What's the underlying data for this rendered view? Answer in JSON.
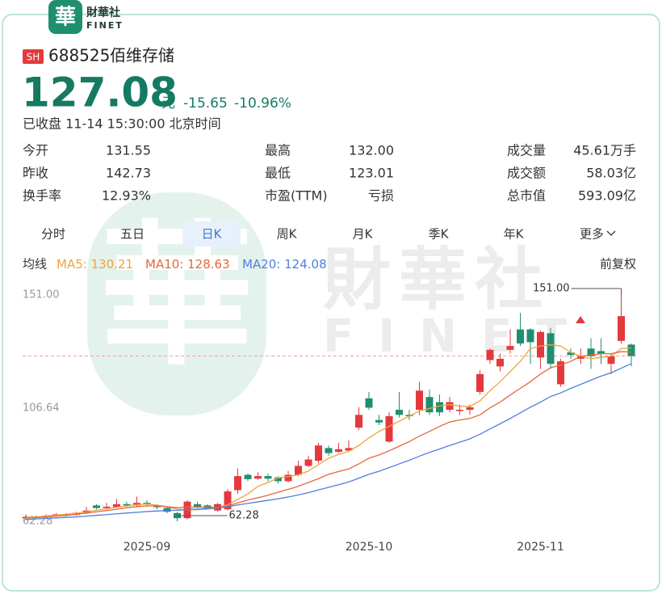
{
  "header": {
    "logo_char": "華",
    "brand_cn": "財華社",
    "brand_en": "FINET"
  },
  "quote": {
    "market": "SH",
    "code": "688525",
    "name": "佰维存储",
    "price": "127.08",
    "unit": "元",
    "change": "-15.65",
    "change_pct": "-10.96%",
    "status": "已收盘 11-14 15:30:00 北京时间"
  },
  "stats": [
    [
      [
        "今开",
        "131.55"
      ],
      [
        "昨收",
        "142.73"
      ],
      [
        "换手率",
        "12.93%"
      ]
    ],
    [
      [
        "最高",
        "132.00"
      ],
      [
        "最低",
        "123.01"
      ],
      [
        "市盈(TTM)",
        "亏损"
      ]
    ],
    [
      [
        "成交量",
        "45.61万手"
      ],
      [
        "成交额",
        "58.03亿"
      ],
      [
        "总市值",
        "593.09亿"
      ]
    ]
  ],
  "tabs": [
    "分时",
    "五日",
    "日K",
    "周K",
    "月K",
    "季K",
    "年K",
    "更多"
  ],
  "watermark": {
    "cn": "財華社",
    "en": "FINET",
    "char": "華"
  },
  "chart_data": {
    "type": "candlestick",
    "categories": [
      null,
      null,
      null,
      null,
      null,
      null,
      null,
      null,
      null,
      null,
      null,
      null,
      "2025-09",
      null,
      null,
      null,
      null,
      null,
      null,
      null,
      null,
      null,
      null,
      null,
      null,
      null,
      null,
      null,
      null,
      null,
      null,
      null,
      null,
      null,
      "2025-10",
      null,
      null,
      null,
      null,
      null,
      null,
      null,
      null,
      null,
      null,
      null,
      null,
      null,
      null,
      null,
      null,
      "2025-11",
      null,
      null,
      null,
      null,
      null,
      null,
      null,
      null,
      null
    ],
    "open": [
      63.5,
      64,
      64,
      64.5,
      65,
      64.8,
      65.6,
      68.5,
      67.5,
      67.8,
      69,
      68.5,
      69.5,
      68.5,
      67.5,
      65.5,
      63.5,
      69,
      68.5,
      66.5,
      67,
      74.5,
      80.5,
      79,
      80,
      79.5,
      78,
      80.5,
      84,
      86,
      91,
      89.5,
      90,
      99,
      110.5,
      102,
      93.5,
      106,
      104,
      106,
      111,
      109,
      106,
      105.5,
      106,
      113,
      125.5,
      123,
      129.5,
      137.5,
      137.5,
      126.5,
      136,
      116,
      128.5,
      126,
      130,
      129,
      124,
      133,
      131.55
    ],
    "high": [
      65,
      64.5,
      65,
      65.5,
      65.5,
      66,
      68,
      69,
      69.5,
      71,
      70,
      72,
      70.5,
      69,
      68,
      66,
      70.5,
      70,
      69,
      69.5,
      75,
      83,
      81,
      81.5,
      81,
      80,
      82,
      86,
      88,
      93,
      92,
      93,
      94,
      107,
      113,
      104,
      105,
      113,
      106,
      117,
      114,
      112,
      111,
      108,
      108,
      121.5,
      130,
      128,
      137.5,
      144,
      138,
      137,
      138,
      126,
      130,
      130,
      134,
      134,
      128,
      151,
      132
    ],
    "low": [
      63,
      63.2,
      63.5,
      64,
      64.2,
      64.5,
      65.2,
      67,
      67,
      67.5,
      68,
      68,
      68,
      67,
      65.5,
      62.28,
      63,
      67.5,
      67,
      66,
      66.5,
      73,
      78,
      78.5,
      78,
      77,
      77.5,
      80,
      83.5,
      85,
      88,
      89,
      89.5,
      98,
      106,
      100,
      93,
      103,
      102,
      104,
      104,
      103.5,
      105,
      104,
      104,
      112,
      124,
      121,
      128,
      131,
      124,
      122,
      122,
      115,
      126,
      124,
      122,
      124,
      120,
      132,
      123.01
    ],
    "close": [
      64,
      63.8,
      64.5,
      65,
      64.8,
      65.6,
      66.5,
      67.5,
      68,
      69,
      68.5,
      69.5,
      68.8,
      67.8,
      66,
      63.5,
      70,
      68,
      67.5,
      69,
      74,
      80,
      78.8,
      80,
      79,
      78,
      80.5,
      84,
      86.5,
      92,
      89,
      90.5,
      91,
      104,
      106.8,
      101,
      103.5,
      104,
      103.5,
      113.5,
      105,
      105,
      109,
      106,
      107,
      120,
      129.5,
      126,
      131,
      132,
      132.5,
      136.5,
      124,
      125,
      127.5,
      127,
      127,
      128,
      127,
      142.73,
      127.08
    ],
    "up_color": "#e4393c",
    "down_color": "#1f8f6f",
    "series": [
      {
        "name": "MA5",
        "color": "#f0a33a",
        "values": [
          63.8,
          64,
          64.3,
          64.7,
          65,
          65.4,
          66,
          66.6,
          67.2,
          67.8,
          68.3,
          68.8,
          69,
          68.6,
          68,
          67,
          66.8,
          66.8,
          67,
          67.5,
          68.8,
          70.8,
          73,
          76,
          77.5,
          79.3,
          79.8,
          80.5,
          82,
          84.5,
          87,
          88.5,
          89.7,
          92,
          95,
          97.5,
          99.5,
          101.5,
          103.5,
          105.5,
          106.5,
          107.5,
          108,
          107.5,
          107.3,
          109.5,
          113.5,
          117,
          121,
          125,
          130,
          131,
          131.5,
          131,
          128.5,
          127,
          126,
          126.5,
          127,
          130,
          130.21
        ]
      },
      {
        "name": "MA10",
        "color": "#e4683a",
        "values": [
          63.5,
          63.7,
          64,
          64.3,
          64.6,
          65,
          65.5,
          66,
          66.5,
          67,
          67.6,
          68,
          68.3,
          68.3,
          68,
          67.6,
          67.8,
          67.9,
          67.8,
          67.7,
          68.3,
          69.5,
          70.6,
          71.5,
          72.5,
          73.7,
          74.8,
          76,
          77.5,
          79,
          80.7,
          81.8,
          82.8,
          84.8,
          87,
          88.3,
          89.9,
          91.7,
          93.5,
          95.7,
          97.5,
          99.5,
          101.2,
          102,
          102.6,
          104,
          106.8,
          109,
          111.8,
          114.4,
          117,
          120,
          122.5,
          123.5,
          125,
          127,
          127.5,
          128,
          128,
          128.8,
          128.63
        ]
      },
      {
        "name": "MA20",
        "color": "#4f7fe0",
        "values": [
          63,
          63.2,
          63.4,
          63.6,
          63.8,
          64,
          64.3,
          64.6,
          64.9,
          65.2,
          65.5,
          65.8,
          66.1,
          66.3,
          66.5,
          66.6,
          66.9,
          67.1,
          67.3,
          67.5,
          68,
          68.7,
          69.3,
          69.9,
          70.5,
          71.1,
          71.8,
          72.6,
          73.5,
          74.6,
          75.6,
          76.6,
          77.7,
          79.2,
          80.7,
          81.9,
          83.3,
          84.8,
          86.2,
          87.8,
          89.3,
          90.6,
          92,
          93.3,
          94.6,
          96.4,
          98.5,
          100.5,
          102.6,
          104.8,
          107,
          109,
          111.2,
          112.6,
          114.4,
          116,
          117.6,
          119.2,
          120.5,
          122.3,
          124.08
        ]
      }
    ],
    "legend_title": "均线",
    "legend_separator": ": ",
    "adjust_label": "前复权",
    "ylim": [
      59.11,
      154.17
    ],
    "yticks": [
      {
        "value": 151,
        "label": "151.00"
      },
      106.64,
      {
        "value": 62.28,
        "label": "62.28"
      }
    ],
    "annotations": [
      {
        "text": "151.00",
        "value": 151
      },
      {
        "text": "62.28",
        "value": 62.28
      }
    ]
  }
}
